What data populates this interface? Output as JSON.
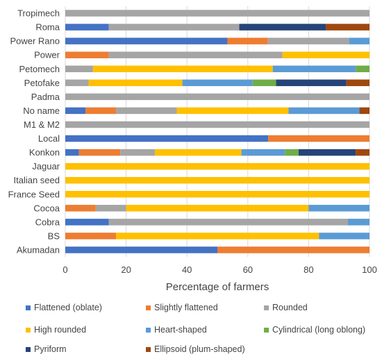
{
  "chart_data": {
    "type": "bar",
    "orientation": "horizontal",
    "stacked": true,
    "categories": [
      "Tropimech",
      "Roma",
      "Power Rano",
      "Power",
      "Petomech",
      "Petofake",
      "Padma",
      "No name",
      "M1 & M2",
      "Local",
      "Konkon",
      "Jaguar",
      "Italian seed",
      "France Seed",
      "Cocoa",
      "Cobra",
      "BS",
      "Akumadan"
    ],
    "series": [
      {
        "name": "Flattened (oblate)",
        "color": "#4472C4",
        "values": [
          0,
          14.3,
          53.3,
          0,
          0,
          0,
          0,
          6.7,
          0,
          66.7,
          4.5,
          0,
          0,
          0,
          0,
          14.3,
          0,
          50
        ]
      },
      {
        "name": "Slightly flattened",
        "color": "#ED7D31",
        "values": [
          0,
          0,
          13.3,
          14.3,
          0,
          0,
          0,
          10,
          0,
          33.3,
          13.6,
          0,
          0,
          0,
          10,
          0,
          16.7,
          50
        ]
      },
      {
        "name": "Rounded",
        "color": "#A5A5A5",
        "values": [
          100,
          42.9,
          26.7,
          57.1,
          9.1,
          7.7,
          100,
          20,
          100,
          0,
          11.4,
          0,
          0,
          0,
          10,
          78.6,
          0,
          0
        ]
      },
      {
        "name": "High rounded",
        "color": "#FFC000",
        "values": [
          0,
          0,
          0,
          28.6,
          59.1,
          30.8,
          0,
          36.7,
          0,
          0,
          28.4,
          100,
          100,
          100,
          60,
          0,
          66.7,
          0
        ]
      },
      {
        "name": "Heart-shaped",
        "color": "#5B9BD5",
        "values": [
          0,
          0,
          6.7,
          0,
          27.3,
          23.1,
          0,
          23.3,
          0,
          0,
          14.3,
          0,
          0,
          0,
          20,
          7.1,
          16.6,
          0
        ]
      },
      {
        "name": "Cylindrical (long oblong)",
        "color": "#70AD47",
        "values": [
          0,
          0,
          0,
          0,
          4.5,
          7.7,
          0,
          0,
          0,
          0,
          4.5,
          0,
          0,
          0,
          0,
          0,
          0,
          0
        ]
      },
      {
        "name": "Pyriform",
        "color": "#264478",
        "values": [
          0,
          28.5,
          0,
          0,
          0,
          23.1,
          0,
          0,
          0,
          0,
          18.8,
          0,
          0,
          0,
          0,
          0,
          0,
          0
        ]
      },
      {
        "name": "Ellipsoid (plum-shaped)",
        "color": "#9E480E",
        "values": [
          0,
          14.3,
          0,
          0,
          0,
          7.6,
          0,
          3.3,
          0,
          0,
          4.5,
          0,
          0,
          0,
          0,
          0,
          0,
          0
        ]
      }
    ],
    "xlabel": "Percentage of farmers",
    "ylabel": "",
    "xlim": [
      0,
      100
    ],
    "xticks": [
      0,
      20,
      40,
      60,
      80,
      100
    ],
    "grid": "vertical",
    "legend_position": "bottom"
  }
}
